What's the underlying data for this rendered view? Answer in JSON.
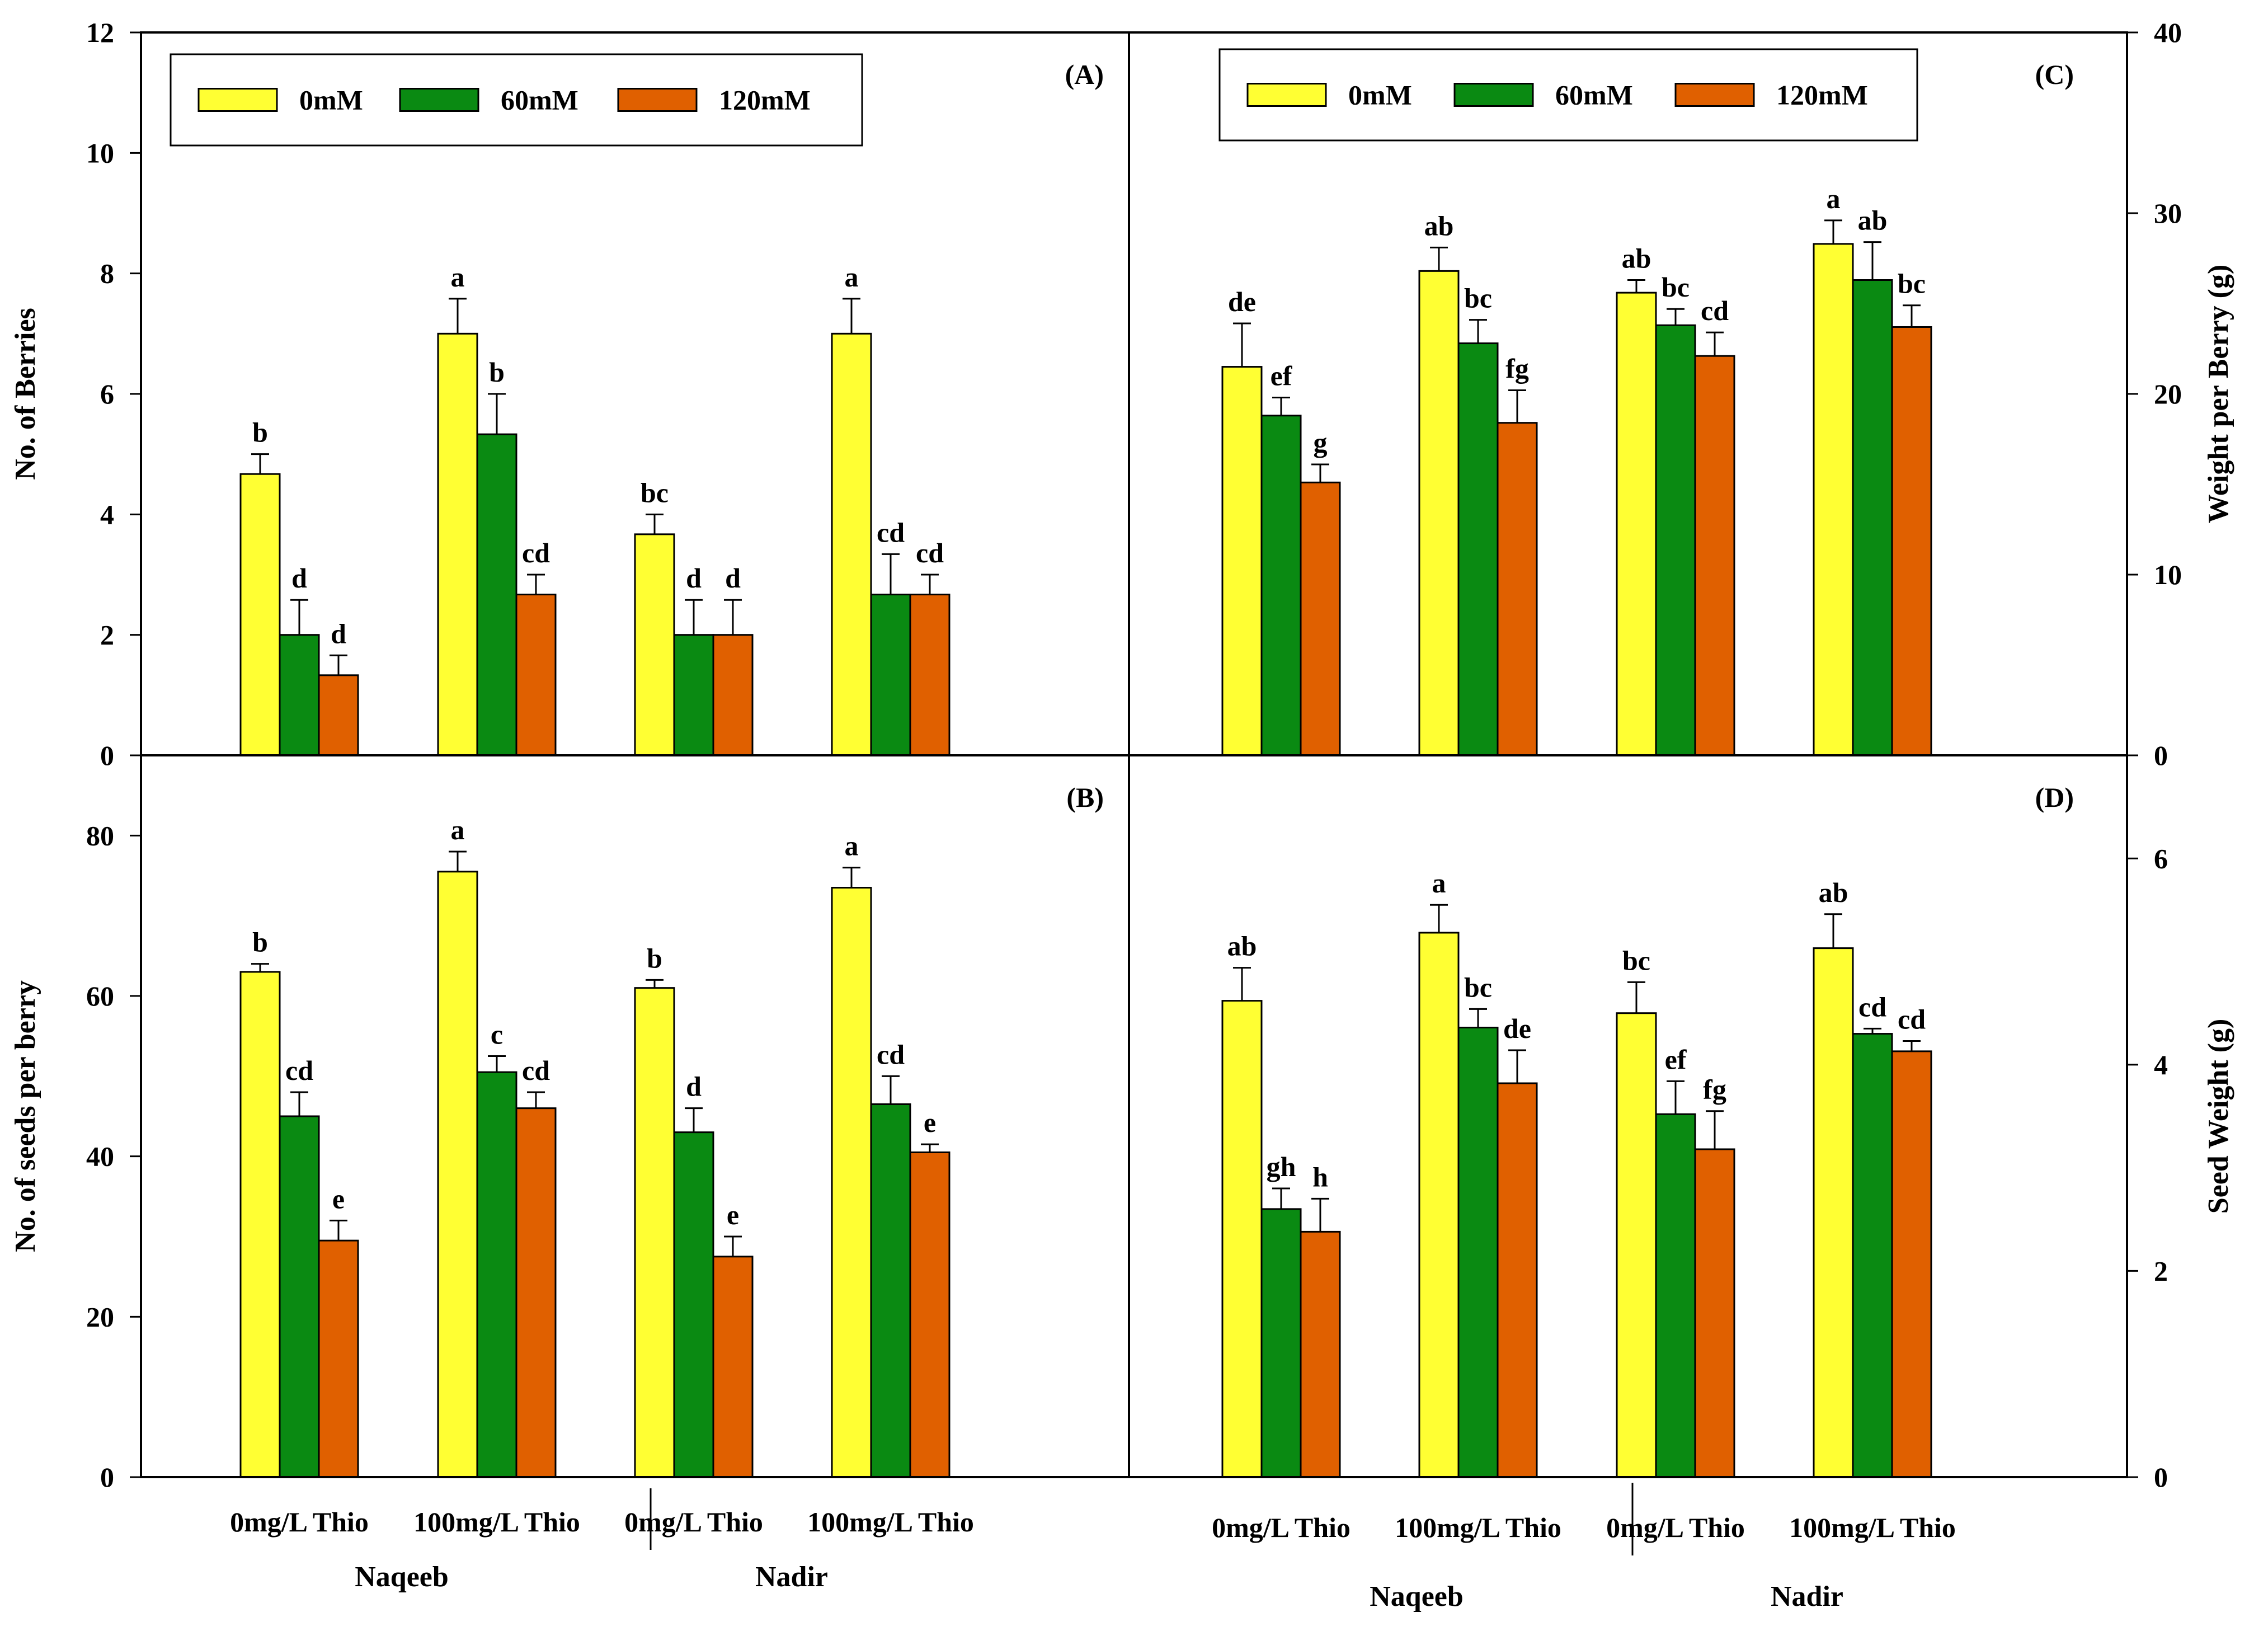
{
  "legend_labels": [
    "0mM",
    "60mM",
    "120mM"
  ],
  "colors": {
    "0mM": "#ffff33",
    "60mM": "#0a8a12",
    "120mM": "#e06000",
    "frame": "#000000"
  },
  "x_groups": {
    "left": [
      {
        "treatment": "0mg/L Thio",
        "cultivar": "Naqeeb"
      },
      {
        "treatment": "100mg/L Thio",
        "cultivar": "Naqeeb"
      },
      {
        "treatment": "0mg/L Thio",
        "cultivar": "Nadir"
      },
      {
        "treatment": "100mg/L Thio",
        "cultivar": "Nadir"
      }
    ],
    "cultivars": [
      "Naqeeb",
      "Nadir"
    ]
  },
  "chart_data": [
    {
      "panel": "(A)",
      "type": "bar",
      "ylabel": "No. of Berries",
      "ylim": [
        0,
        12
      ],
      "yticks": [
        0,
        2,
        4,
        6,
        8,
        10,
        12
      ],
      "axis_side": "left",
      "categories": [
        "Naqeeb 0mg/L Thio",
        "Naqeeb 100mg/L Thio",
        "Nadir 0mg/L Thio",
        "Nadir 100mg/L Thio"
      ],
      "series": [
        {
          "name": "0mM",
          "values": [
            4.67,
            7.0,
            3.67,
            7.0
          ],
          "errors": [
            0.33,
            0.58,
            0.33,
            0.58
          ],
          "letters": [
            "b",
            "a",
            "bc",
            "a"
          ]
        },
        {
          "name": "60mM",
          "values": [
            2.0,
            5.33,
            2.0,
            2.67
          ],
          "errors": [
            0.58,
            0.67,
            0.58,
            0.67
          ],
          "letters": [
            "d",
            "b",
            "d",
            "cd"
          ]
        },
        {
          "name": "120mM",
          "values": [
            1.33,
            2.67,
            2.0,
            2.67
          ],
          "errors": [
            0.33,
            0.33,
            0.58,
            0.33
          ],
          "letters": [
            "d",
            "cd",
            "d",
            "cd"
          ]
        }
      ]
    },
    {
      "panel": "(B)",
      "type": "bar",
      "ylabel": "No. of seeds per berry",
      "ylim": [
        0,
        90
      ],
      "yticks": [
        0,
        20,
        40,
        60,
        80
      ],
      "axis_side": "left",
      "categories": [
        "Naqeeb 0mg/L Thio",
        "Naqeeb 100mg/L Thio",
        "Nadir 0mg/L Thio",
        "Nadir 100mg/L Thio"
      ],
      "series": [
        {
          "name": "0mM",
          "values": [
            63,
            75.5,
            61,
            73.5
          ],
          "errors": [
            1,
            2.5,
            1,
            2.5
          ],
          "letters": [
            "b",
            "a",
            "b",
            "a"
          ]
        },
        {
          "name": "60mM",
          "values": [
            45,
            50.5,
            43,
            46.5
          ],
          "errors": [
            3,
            2,
            3,
            3.5
          ],
          "letters": [
            "cd",
            "c",
            "d",
            "cd"
          ]
        },
        {
          "name": "120mM",
          "values": [
            29.5,
            46,
            27.5,
            40.5
          ],
          "errors": [
            2.5,
            2,
            2.5,
            1
          ],
          "letters": [
            "e",
            "cd",
            "e",
            "e"
          ]
        }
      ]
    },
    {
      "panel": "(C)",
      "type": "bar",
      "ylabel": "Weight per Berry (g)",
      "ylim": [
        0,
        40
      ],
      "yticks": [
        0,
        10,
        20,
        30,
        40
      ],
      "axis_side": "right",
      "categories": [
        "Naqeeb 0mg/L Thio",
        "Naqeeb 100mg/L Thio",
        "Nadir 0mg/L Thio",
        "Nadir 100mg/L Thio"
      ],
      "series": [
        {
          "name": "0mM",
          "values": [
            21.5,
            26.8,
            25.6,
            28.3
          ],
          "errors": [
            2.4,
            1.3,
            0.7,
            1.3
          ],
          "letters": [
            "de",
            "ab",
            "ab",
            "a"
          ]
        },
        {
          "name": "60mM",
          "values": [
            18.8,
            22.8,
            23.8,
            26.3
          ],
          "errors": [
            1.0,
            1.3,
            0.9,
            2.1
          ],
          "letters": [
            "ef",
            "bc",
            "bc",
            "ab"
          ]
        },
        {
          "name": "120mM",
          "values": [
            15.1,
            18.4,
            22.1,
            23.7
          ],
          "errors": [
            1.0,
            1.8,
            1.3,
            1.2
          ],
          "letters": [
            "g",
            "fg",
            "cd",
            "bc"
          ]
        }
      ]
    },
    {
      "panel": "(D)",
      "type": "bar",
      "ylabel": "Seed Weight (g)",
      "ylim": [
        0,
        7
      ],
      "yticks": [
        0,
        2,
        4,
        6
      ],
      "axis_side": "right",
      "categories": [
        "Naqeeb 0mg/L Thio",
        "Naqeeb 100mg/L Thio",
        "Nadir 0mg/L Thio",
        "Nadir 100mg/L Thio"
      ],
      "series": [
        {
          "name": "0mM",
          "values": [
            4.62,
            5.28,
            4.5,
            5.13
          ],
          "errors": [
            0.32,
            0.27,
            0.3,
            0.33
          ],
          "letters": [
            "ab",
            "a",
            "bc",
            "ab"
          ]
        },
        {
          "name": "60mM",
          "values": [
            2.6,
            4.36,
            3.52,
            4.3
          ],
          "errors": [
            0.2,
            0.18,
            0.32,
            0.05
          ],
          "letters": [
            "gh",
            "bc",
            "ef",
            "cd"
          ]
        },
        {
          "name": "120mM",
          "values": [
            2.38,
            3.82,
            3.18,
            4.13
          ],
          "errors": [
            0.32,
            0.32,
            0.37,
            0.1
          ],
          "letters": [
            "h",
            "de",
            "fg",
            "cd"
          ]
        }
      ]
    }
  ]
}
